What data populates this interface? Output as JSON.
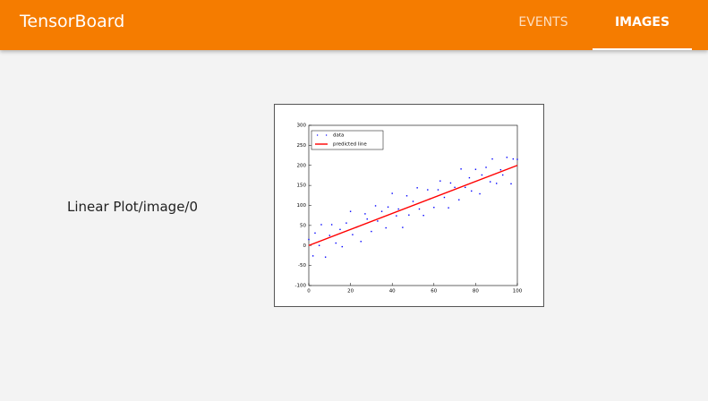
{
  "header": {
    "title": "TensorBoard",
    "tabs": [
      "EVENTS",
      "IMAGES"
    ],
    "active_tab": 1
  },
  "image_card": {
    "tag": "Linear Plot/image/0"
  },
  "chart_data": {
    "type": "scatter",
    "xlim": [
      0,
      100
    ],
    "ylim": [
      -100,
      300
    ],
    "xticks": [
      0,
      20,
      40,
      60,
      80,
      100
    ],
    "yticks": [
      -100,
      -50,
      0,
      50,
      100,
      150,
      200,
      250,
      300
    ],
    "legend": "upper left",
    "series": [
      {
        "name": "data",
        "type": "scatter",
        "color": "#0000ff",
        "x": [
          0,
          2,
          3,
          5,
          6,
          8,
          10,
          11,
          13,
          15,
          16,
          18,
          20,
          21,
          23,
          25,
          27,
          28,
          30,
          32,
          33,
          35,
          37,
          38,
          40,
          42,
          43,
          45,
          47,
          48,
          50,
          52,
          53,
          55,
          57,
          58,
          60,
          62,
          63,
          65,
          67,
          68,
          70,
          72,
          73,
          75,
          77,
          78,
          80,
          82,
          83,
          85,
          87,
          88,
          90,
          92,
          93,
          95,
          97,
          98,
          100
        ],
        "values": [
          15,
          -26,
          31,
          0,
          52,
          -29,
          25,
          52,
          6,
          40,
          -3,
          56,
          85,
          27,
          46,
          10,
          79,
          66,
          35,
          99,
          61,
          85,
          44,
          96,
          130,
          74,
          91,
          45,
          124,
          76,
          110,
          144,
          91,
          75,
          139,
          116,
          95,
          139,
          161,
          120,
          94,
          156,
          145,
          114,
          191,
          145,
          169,
          136,
          190,
          129,
          176,
          195,
          159,
          216,
          155,
          189,
          176,
          220,
          154,
          216,
          215
        ]
      },
      {
        "name": "predicted line",
        "type": "line",
        "color": "#ff0000",
        "x": [
          0,
          100
        ],
        "values": [
          0,
          200
        ]
      }
    ]
  }
}
